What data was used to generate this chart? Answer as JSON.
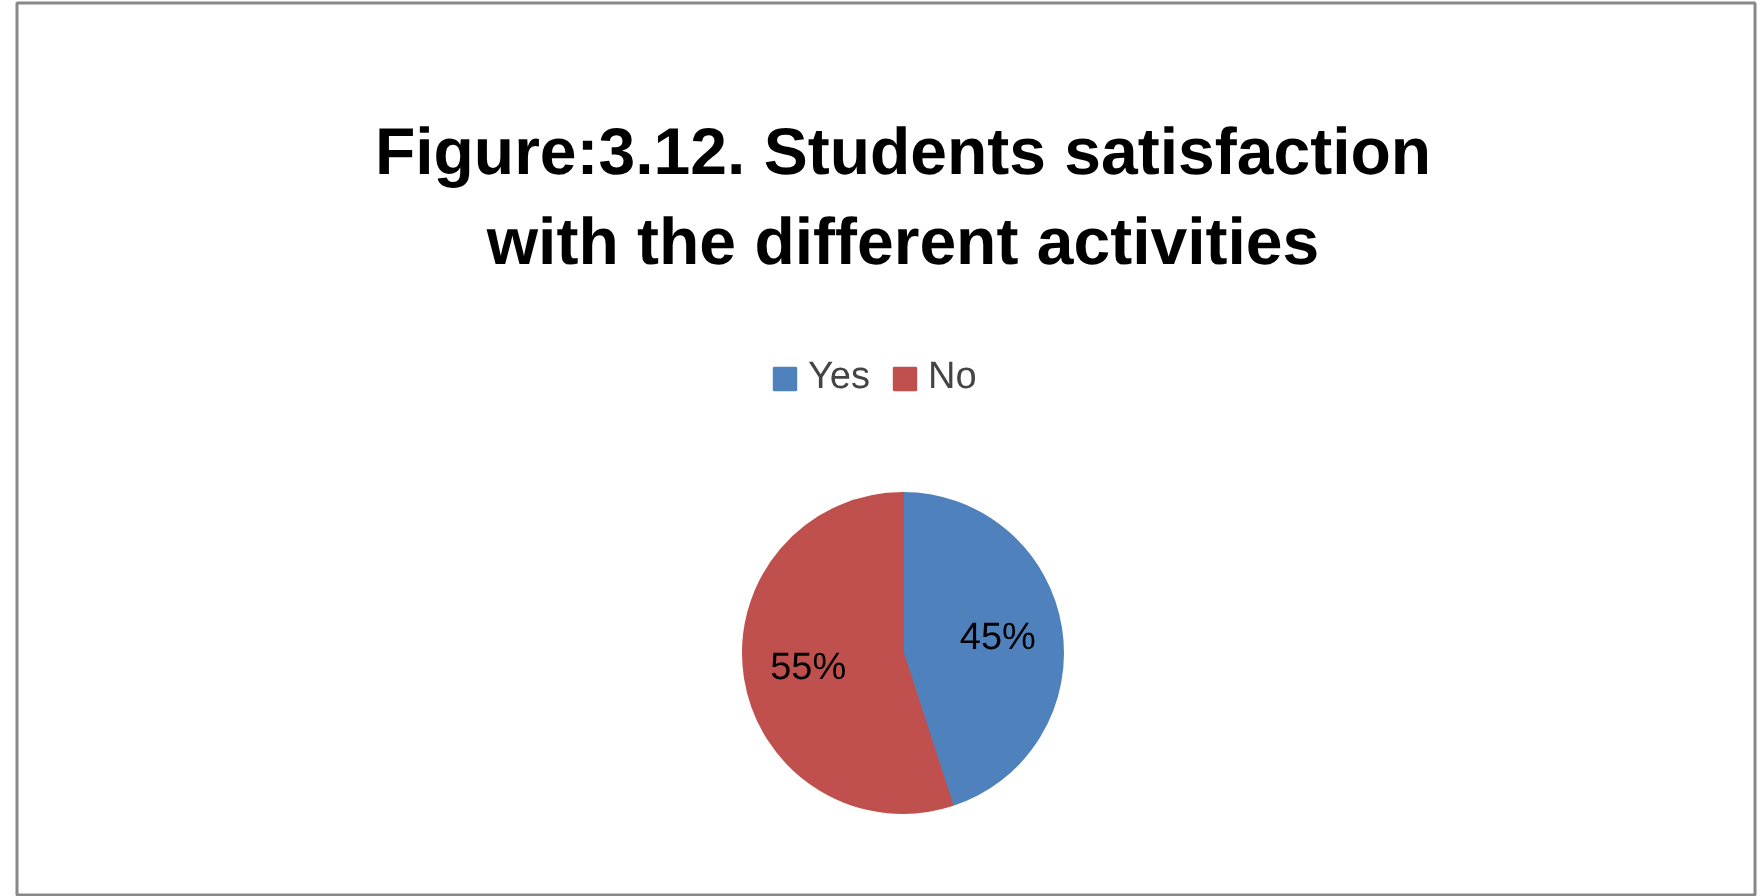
{
  "chart_data": {
    "type": "pie",
    "title": "Figure:3.12. Students satisfaction with the different activities",
    "categories": [
      "Yes",
      "No"
    ],
    "values": [
      45,
      55
    ],
    "colors": [
      "#4f81bd",
      "#c0504d"
    ],
    "value_labels": [
      "45%",
      "55%"
    ],
    "legend": "top"
  }
}
